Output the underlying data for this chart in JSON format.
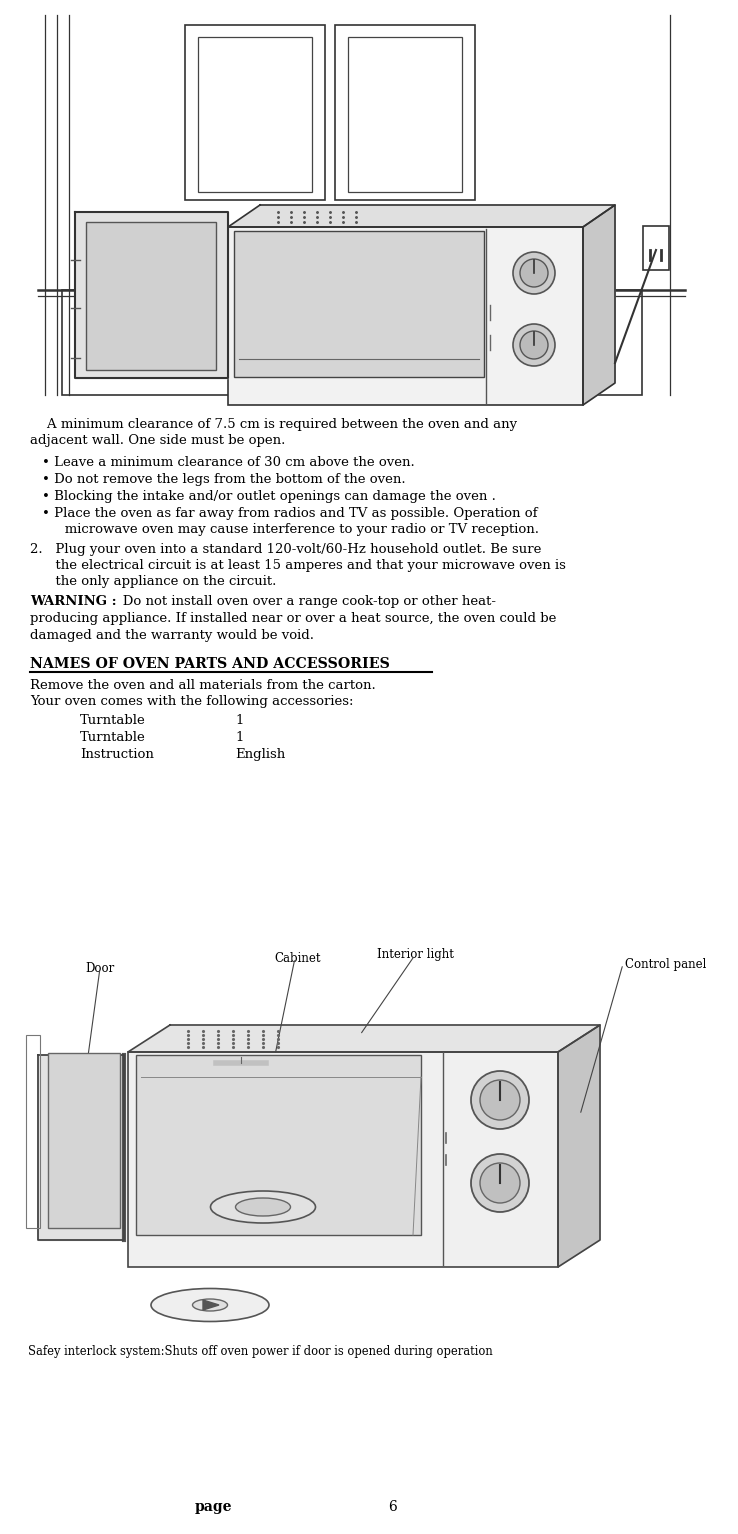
{
  "page_bg": "#ffffff",
  "figsize": [
    7.38,
    15.34
  ],
  "dpi": 100,
  "text_color": "#000000",
  "paragraph1": "    A minimum clearance of 7.5 cm is required between the oven and any adjacent wall. One side must be open.",
  "bullet1": "Leave a minimum clearance of 30 cm above the oven.",
  "bullet2": "Do not remove the legs from the bottom of the oven.",
  "bullet3": "Blocking the intake and/or outlet openings can damage the oven .",
  "bullet4a": "Place the oven as far away from radios and TV as possible. Operation of",
  "bullet4b": "   microwave oven may cause interference to your radio or TV reception.",
  "item2a": "2.   Plug your oven into a standard 120-volt/60-Hz household outlet. Be sure",
  "item2b": "      the electrical circuit is at least 15 amperes and that your microwave oven is",
  "item2c": "      the only appliance on the circuit.",
  "warn_bold": "WARNING :",
  "warn_rest": "   Do not install oven over a range cook-top or other heat-",
  "warn2": "producing appliance. If installed near or over a heat source, the oven could be",
  "warn3": "damaged and the warranty would be void.",
  "section_title": "NAMES OF OVEN PARTS AND ACCESSORIES",
  "remove_text": "Remove the oven and all materials from the carton.",
  "your_oven_text": "Your oven comes with the following accessories:",
  "acc1_name": "Turntable",
  "acc1_val": "1",
  "acc2_name": "Turntable",
  "acc2_val": "1",
  "acc3_name": "Instruction",
  "acc3_val": "English",
  "safety_text": "Safey interlock system:Shuts off oven power if door is opened during operation",
  "page_label": "page",
  "page_num": "6",
  "label_door": "Door",
  "label_cabinet": "Cabinet",
  "label_interior": "Interior light",
  "label_control": "Control panel"
}
